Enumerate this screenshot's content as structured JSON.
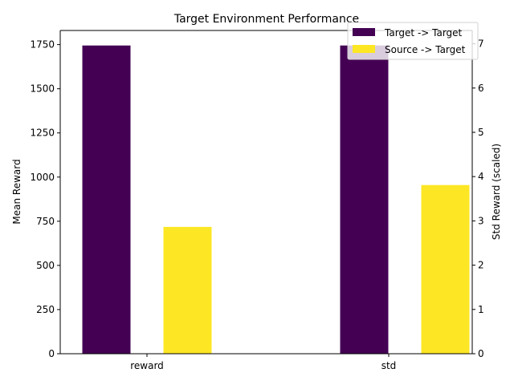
{
  "chart_data": {
    "type": "bar",
    "title": "Target Environment Performance",
    "categories": [
      "reward",
      "std"
    ],
    "ylabel": "Mean Reward",
    "ylabel_right": "Std Reward (scaled)",
    "ylim": [
      0,
      1830
    ],
    "ylim_right": [
      0,
      7.3
    ],
    "yticks": [
      0,
      250,
      500,
      750,
      1000,
      1250,
      1500,
      1750
    ],
    "yticks_right": [
      0,
      1,
      2,
      3,
      4,
      5,
      6,
      7
    ],
    "grid": false,
    "legend_position": "top-right",
    "series": [
      {
        "name": "Target -> Target",
        "color": "#440154",
        "values": [
          1745,
          1745
        ]
      },
      {
        "name": "Source -> Target",
        "color": "#fde725",
        "values": [
          718,
          955
        ]
      }
    ]
  }
}
